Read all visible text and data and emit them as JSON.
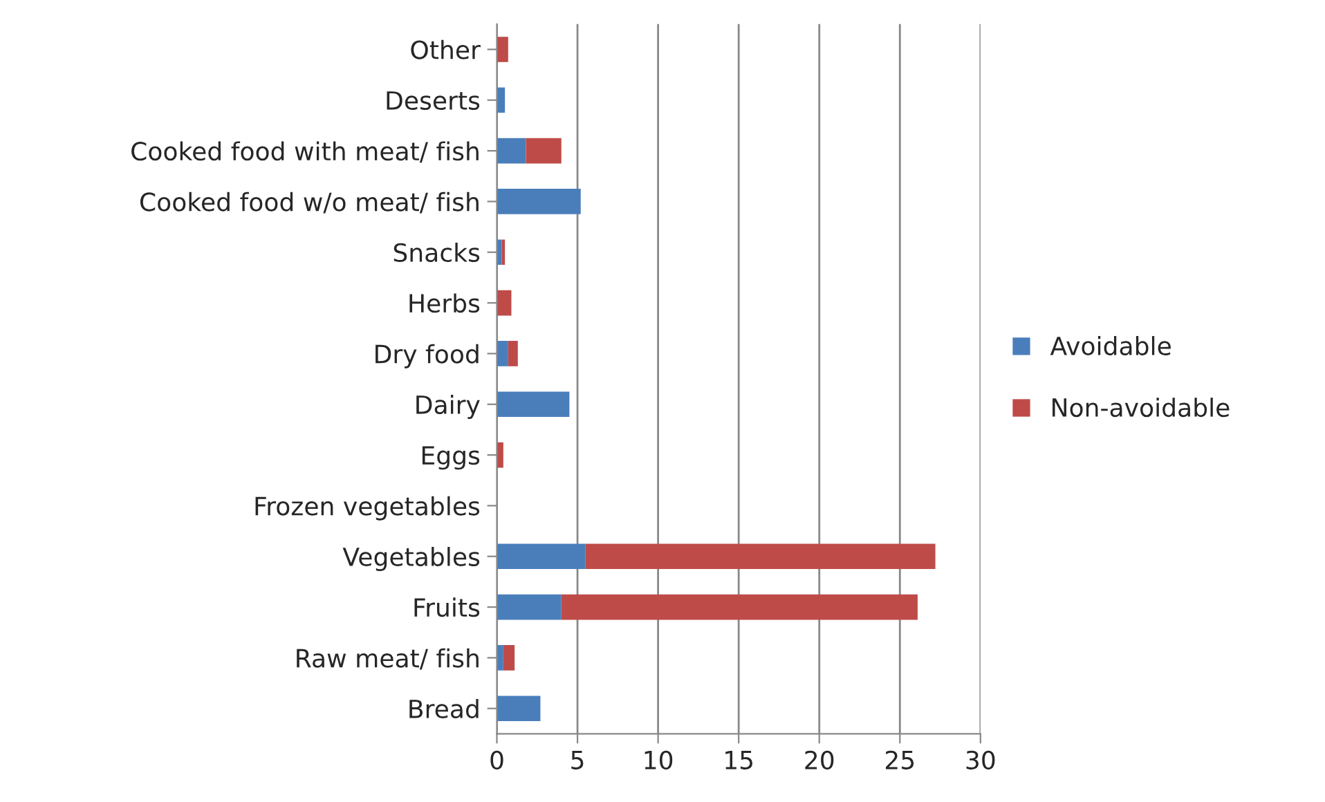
{
  "chart_data": {
    "type": "bar",
    "orientation": "horizontal",
    "stacked": true,
    "categories": [
      "Other",
      "Deserts",
      "Cooked food with meat/ fish",
      "Cooked food w/o meat/ fish",
      "Snacks",
      "Herbs",
      "Dry food",
      "Dairy",
      "Eggs",
      "Frozen vegetables",
      "Vegetables",
      "Fruits",
      "Raw meat/ fish",
      "Bread"
    ],
    "series": [
      {
        "name": "Avoidable",
        "color": "#4a7ebb",
        "values": [
          null,
          0.5,
          1.8,
          5.2,
          0.3,
          null,
          0.7,
          4.5,
          null,
          0,
          5.5,
          4.0,
          0.4,
          2.7
        ]
      },
      {
        "name": "Non-avoidable",
        "color": "#be4b48",
        "values": [
          0.7,
          0,
          2.2,
          0,
          0.2,
          0.9,
          0.6,
          0,
          0.4,
          0,
          21.7,
          22.1,
          0.7,
          0
        ]
      }
    ],
    "xlim": [
      0,
      30
    ],
    "xticks": [
      0,
      5,
      10,
      15,
      20,
      25,
      30
    ],
    "grid": "x",
    "legend": "right"
  }
}
